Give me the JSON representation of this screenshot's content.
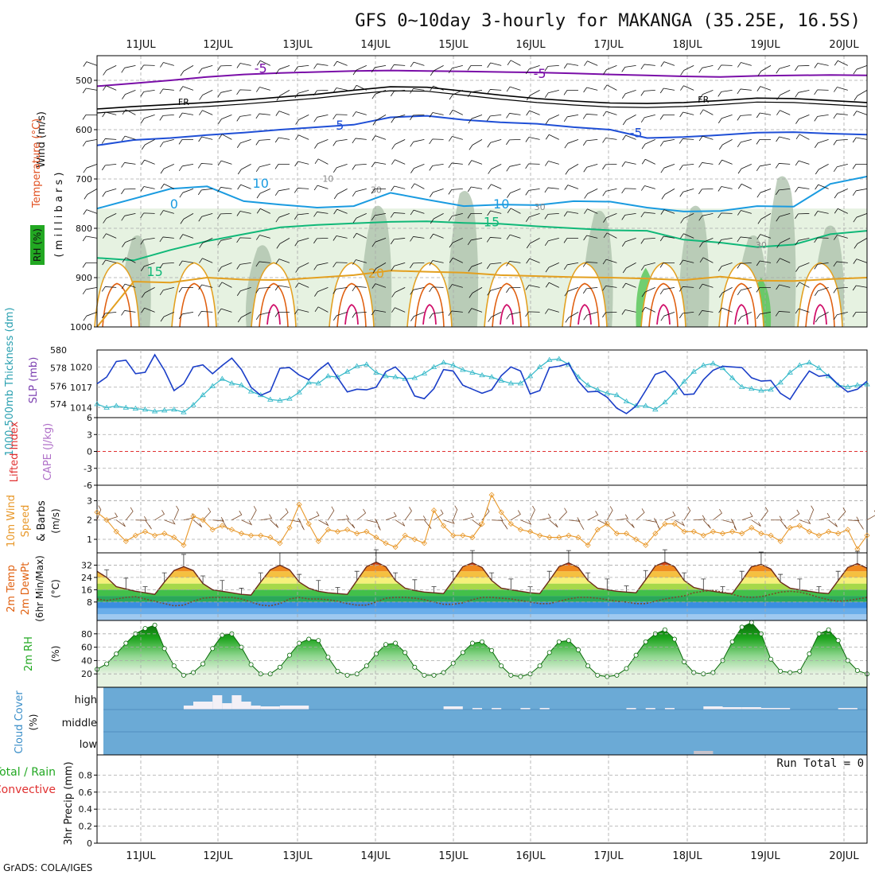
{
  "title": "GFS 0~10day 3-hourly for MAKANGA (35.25E, 16.5S)",
  "footer": "GrADS: COLA/IGES",
  "run_total": "Run Total = 0",
  "colors": {
    "temp_neg": "#7a0ea8",
    "temp_blue": "#1f4fd6",
    "temp_10": "#1a9be0",
    "temp_15": "#10b878",
    "temp_20": "#e3a020",
    "temp_25": "#e06010",
    "temp_30": "#d0106a",
    "slp": "#1a3ec8",
    "thickness": "#33b8c8",
    "wind10m": "#e8982a",
    "cloud_bg": "#6baad6",
    "rh_green": "#22a822",
    "grid": "#a8a8a8"
  },
  "chart_data": [
    {
      "id": "upper",
      "type": "contour",
      "ylabel_wind": "Wind (m/s)",
      "ylabel_temp": "Temperature (°C)",
      "ylabel_rh": "RH (%)",
      "ylabel_pres": "( m i l l i b a r s )",
      "y_ticks": [
        500,
        600,
        700,
        800,
        900,
        1000
      ],
      "y_range": [
        450,
        1000
      ],
      "contour_labels": [
        "-5",
        "-5",
        "FR",
        "FR",
        "-5",
        "-5",
        "10",
        "0",
        "10",
        "15",
        "15",
        "20",
        "10",
        "30",
        "30",
        "30"
      ],
      "x_range": [
        0,
        80
      ],
      "series": [
        {
          "key": "m5a",
          "values": [
            512,
            506,
            500,
            493,
            488,
            485,
            483,
            481,
            480,
            481,
            482,
            483,
            484,
            486,
            488,
            490,
            492,
            493,
            491,
            490,
            489,
            490
          ]
        },
        {
          "key": "frz",
          "values": [
            558,
            553,
            549,
            545,
            540,
            534,
            528,
            520,
            513,
            514,
            522,
            530,
            537,
            542,
            546,
            547,
            545,
            541,
            536,
            537,
            541,
            545
          ]
        },
        {
          "key": "m5b",
          "values": [
            632,
            621,
            617,
            611,
            606,
            600,
            595,
            590,
            575,
            572,
            580,
            585,
            588,
            595,
            600,
            617,
            615,
            611,
            606,
            605,
            608,
            610
          ]
        },
        {
          "key": "t10",
          "values": [
            760,
            740,
            720,
            715,
            745,
            752,
            758,
            755,
            728,
            742,
            755,
            752,
            753,
            745,
            746,
            758,
            766,
            765,
            755,
            756,
            710,
            695
          ]
        },
        {
          "key": "t15",
          "values": [
            860,
            865,
            844,
            826,
            812,
            798,
            793,
            790,
            787,
            786,
            789,
            791,
            796,
            800,
            804,
            805,
            823,
            829,
            838,
            833,
            812,
            805
          ]
        },
        {
          "key": "t20",
          "values": [
            1000,
            908,
            910,
            900,
            904,
            905,
            900,
            895,
            886,
            888,
            890,
            895,
            897,
            899,
            900,
            902,
            905,
            898,
            906,
            907,
            903,
            900
          ]
        }
      ]
    },
    {
      "id": "slp",
      "type": "line",
      "ylabel_a": "1000-500mb Thickness (dm)",
      "ylabel_b": "SLP (mb)",
      "y_ticks_left": [
        "574",
        "576",
        "578",
        "580"
      ],
      "y_ticks_right": [
        "1014",
        "1017",
        "1020"
      ],
      "x_range": [
        0,
        80
      ],
      "series": [
        {
          "name": "SLP (mb)",
          "values": [
            1017.5,
            1018.5,
            1020.8,
            1021.0,
            1019.0,
            1019.2,
            1021.8,
            1019.5,
            1016.5,
            1017.5,
            1020.0,
            1020.3,
            1019.0,
            1020.2,
            1021.3,
            1019.6,
            1017.0,
            1015.8,
            1016.4,
            1019.8,
            1019.9,
            1018.8,
            1018.1,
            1019.5,
            1020.6,
            1018.4,
            1016.3,
            1016.7,
            1016.6,
            1017.0,
            1019.3,
            1020.0,
            1018.5,
            1015.7,
            1015.3,
            1016.8,
            1019.6,
            1019.4,
            1017.3,
            1016.7,
            1016.1,
            1016.6,
            1018.7,
            1020.0,
            1019.4,
            1016.0,
            1016.5,
            1019.9,
            1020.1,
            1020.5,
            1017.9,
            1016.3,
            1016.4,
            1015.5,
            1013.9,
            1013.1,
            1014.2,
            1016.5,
            1018.9,
            1019.4,
            1017.9,
            1015.9,
            1016.0,
            1018.1,
            1019.5,
            1020.1,
            1020.0,
            1019.9,
            1018.4,
            1017.9,
            1018.0,
            1016.1,
            1015.2,
            1017.4,
            1019.4,
            1018.6,
            1018.8,
            1017.4,
            1016.3,
            1016.7,
            1017.9
          ]
        },
        {
          "name": "Thickness (dm)",
          "values": [
            574.0,
            573.6,
            573.8,
            573.6,
            573.5,
            573.4,
            573.2,
            573.3,
            573.4,
            573.1,
            573.9,
            575.0,
            576.0,
            576.8,
            576.3,
            576.1,
            575.4,
            575.0,
            574.5,
            574.4,
            574.6,
            575.3,
            576.4,
            576.3,
            577.1,
            577.0,
            577.6,
            578.2,
            578.4,
            577.5,
            577.1,
            577.0,
            576.8,
            576.9,
            577.4,
            578.1,
            578.6,
            578.3,
            577.8,
            577.5,
            577.2,
            577.0,
            576.6,
            576.3,
            576.3,
            577.1,
            578.1,
            578.9,
            579.0,
            578.4,
            577.0,
            576.1,
            575.6,
            575.2,
            575.0,
            574.3,
            573.8,
            573.8,
            573.4,
            574.2,
            575.3,
            576.5,
            577.6,
            578.3,
            578.5,
            578.0,
            576.9,
            575.9,
            575.7,
            575.5,
            575.6,
            576.4,
            577.5,
            578.3,
            578.6,
            578.0,
            577.1,
            576.1,
            575.9,
            576.1,
            576.2
          ]
        }
      ]
    },
    {
      "id": "li",
      "type": "line",
      "ylabel_a": "Lifted Index",
      "ylabel_b": "CAPE (J/kg)",
      "y_ticks": [
        "6",
        "3",
        "0",
        "-3",
        "-6"
      ],
      "y_range": [
        -6,
        6
      ],
      "series": []
    },
    {
      "id": "wind10m",
      "type": "line",
      "ylabel_a": "10m Wind",
      "ylabel_b": "Speed",
      "ylabel_c": "& Barbs",
      "ylabel_unit": "(m/s)",
      "y_ticks": [
        "1",
        "2",
        "3"
      ],
      "y_range": [
        0.3,
        3.8
      ],
      "x_range": [
        0,
        80
      ],
      "series": [
        {
          "name": "10m Wind Speed",
          "values": [
            2.4,
            2.0,
            1.4,
            0.9,
            1.2,
            1.4,
            1.2,
            1.3,
            1.1,
            0.7,
            2.2,
            2.0,
            1.5,
            1.7,
            1.5,
            1.3,
            1.2,
            1.2,
            1.1,
            0.8,
            1.6,
            2.8,
            1.8,
            0.9,
            1.5,
            1.4,
            1.5,
            1.3,
            1.4,
            1.1,
            0.8,
            0.6,
            1.2,
            1.0,
            0.8,
            2.5,
            1.7,
            1.2,
            1.2,
            1.1,
            1.8,
            3.3,
            2.4,
            1.8,
            1.5,
            1.4,
            1.2,
            1.1,
            1.1,
            1.2,
            1.1,
            0.7,
            1.5,
            1.8,
            1.3,
            1.3,
            1.0,
            0.7,
            1.3,
            1.8,
            1.8,
            1.4,
            1.4,
            1.2,
            1.4,
            1.3,
            1.4,
            1.3,
            1.6,
            1.3,
            1.2,
            0.9,
            1.6,
            1.7,
            1.4,
            1.2,
            1.4,
            1.3,
            1.5,
            0.5,
            1.2
          ]
        }
      ]
    },
    {
      "id": "temp2m",
      "type": "area",
      "ylabel_a": "2m Temp",
      "ylabel_b": "2m DewPt",
      "ylabel_c": "(6hr Min/Max)",
      "ylabel_unit": "(°C)",
      "y_ticks": [
        "8",
        "16",
        "24",
        "32"
      ],
      "y_range": [
        -4,
        40
      ],
      "x_range": [
        0,
        80
      ],
      "series": [
        {
          "name": "2m Temp",
          "values": [
            28.0,
            24.0,
            18.0,
            16.5,
            15.0,
            14.0,
            13.0,
            21.0,
            28.5,
            31.0,
            28.5,
            20.0,
            16.0,
            15.0,
            14.0,
            13.0,
            12.5,
            21.0,
            29.0,
            32.0,
            29.0,
            21.0,
            17.0,
            15.0,
            14.0,
            13.5,
            13.0,
            22.0,
            31.0,
            34.0,
            31.0,
            22.0,
            17.0,
            15.5,
            14.5,
            14.0,
            13.5,
            22.0,
            31.0,
            33.5,
            30.5,
            22.0,
            17.0,
            16.0,
            15.0,
            14.0,
            13.5,
            22.0,
            31.0,
            33.5,
            30.5,
            22.0,
            17.0,
            16.0,
            15.0,
            14.5,
            14.0,
            22.5,
            31.5,
            34.0,
            31.0,
            22.0,
            17.5,
            16.0,
            15.0,
            14.0,
            13.5,
            22.0,
            31.0,
            32.5,
            29.5,
            21.0,
            17.0,
            16.0,
            15.0,
            14.0,
            13.5,
            22.0,
            30.5,
            33.0,
            30.0
          ]
        },
        {
          "name": "2m DewPt",
          "values": [
            10.0,
            9.0,
            10.0,
            11.0,
            11.5,
            10.0,
            8.5,
            7.0,
            5.5,
            6.0,
            8.5,
            10.5,
            11.0,
            11.0,
            11.0,
            10.0,
            8.0,
            6.0,
            5.5,
            7.0,
            10.0,
            11.0,
            10.0,
            10.0,
            9.5,
            8.5,
            7.0,
            6.0,
            6.0,
            8.0,
            10.5,
            11.0,
            11.0,
            10.5,
            9.5,
            8.0,
            6.5,
            6.5,
            7.5,
            9.5,
            11.0,
            11.0,
            10.5,
            10.0,
            9.0,
            8.0,
            7.0,
            7.0,
            8.5,
            10.0,
            11.0,
            11.0,
            10.5,
            9.5,
            8.5,
            8.0,
            7.0,
            7.0,
            8.5,
            10.0,
            11.0,
            12.0,
            14.0,
            15.0,
            15.5,
            14.5,
            13.0,
            11.5,
            11.0,
            11.5,
            13.0,
            14.5,
            15.0,
            14.5,
            13.0,
            11.0,
            9.5,
            8.5,
            9.0,
            10.0,
            11.0
          ]
        }
      ]
    },
    {
      "id": "rh2m",
      "type": "area",
      "ylabel_a": "2m RH",
      "ylabel_unit": "(%)",
      "y_ticks": [
        "20",
        "40",
        "60",
        "80"
      ],
      "y_range": [
        0,
        100
      ],
      "x_range": [
        0,
        80
      ],
      "series": [
        {
          "name": "2m RH",
          "values": [
            27,
            35,
            50,
            66,
            80,
            88,
            93,
            58,
            32,
            18,
            22,
            35,
            58,
            78,
            80,
            60,
            34,
            20,
            20,
            30,
            48,
            66,
            72,
            70,
            45,
            24,
            18,
            20,
            32,
            50,
            64,
            66,
            52,
            30,
            18,
            18,
            22,
            36,
            52,
            66,
            68,
            55,
            32,
            18,
            16,
            20,
            32,
            52,
            68,
            70,
            56,
            32,
            18,
            16,
            18,
            28,
            48,
            68,
            80,
            86,
            72,
            38,
            22,
            20,
            22,
            40,
            68,
            90,
            97,
            80,
            42,
            24,
            22,
            24,
            50,
            80,
            86,
            70,
            40,
            25,
            20
          ]
        }
      ]
    },
    {
      "id": "cloud",
      "type": "bar",
      "ylabel_a": "Cloud Cover",
      "ylabel_unit": "(%)",
      "y_ticks": [
        "low",
        "middle",
        "high"
      ]
    },
    {
      "id": "precip",
      "type": "bar",
      "ylabel_a": "3hr Precip (mm)",
      "ylabel_b": "Total / Rain",
      "ylabel_c": "Convective",
      "y_ticks": [
        "0",
        "0.2",
        "0.4",
        "0.6",
        "0.8"
      ],
      "y_range": [
        0,
        1
      ]
    }
  ],
  "dates": [
    "11JUL",
    "12JUL",
    "13JUL",
    "14JUL",
    "15JUL",
    "16JUL",
    "17JUL",
    "18JUL",
    "19JUL",
    "20JUL"
  ]
}
